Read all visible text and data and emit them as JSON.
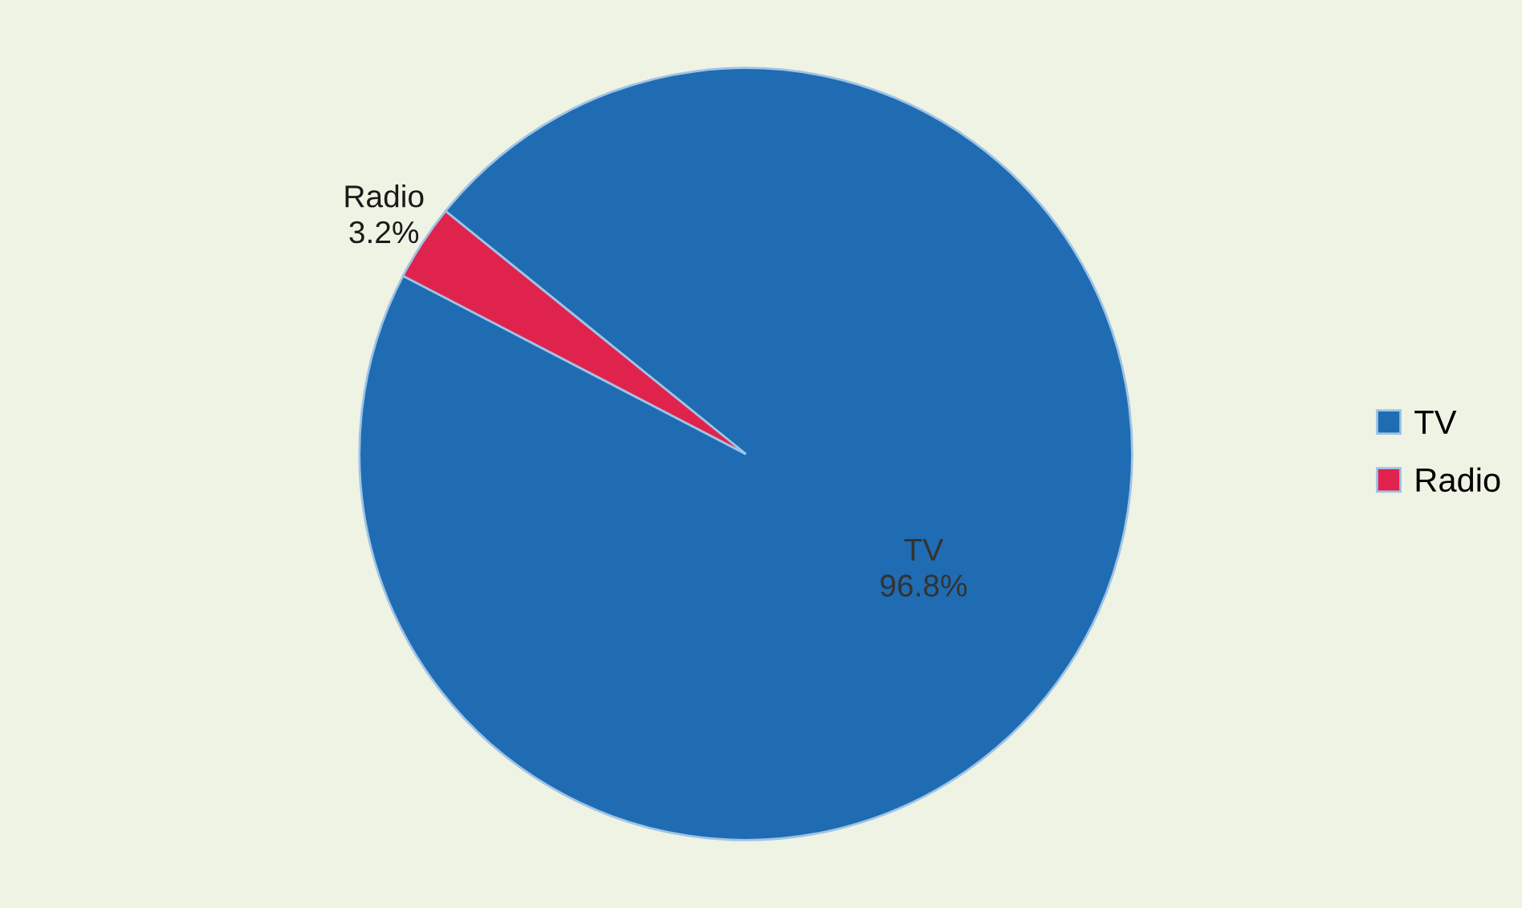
{
  "chart_data": {
    "type": "pie",
    "categories": [
      "TV",
      "Radio"
    ],
    "values": [
      96.8,
      3.2
    ],
    "value_labels": [
      "96.8%",
      "3.2%"
    ],
    "colors": [
      "#1f6cb3",
      "#e0234c"
    ],
    "legend": "right"
  }
}
